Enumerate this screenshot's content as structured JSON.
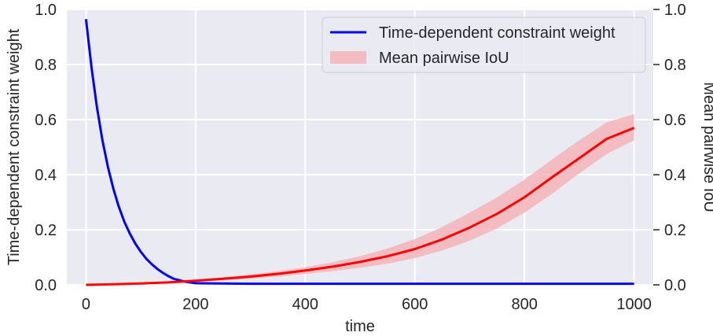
{
  "chart_data": {
    "type": "line",
    "title": "",
    "xlabel": "time",
    "ylabel_left": "Time-dependent constraint weight",
    "ylabel_right": "Mean pairwise IoU",
    "xlim": [
      -35,
      1035
    ],
    "ylim": [
      0,
      1
    ],
    "ylim_right": [
      0,
      1
    ],
    "x_ticks": [
      0,
      200,
      400,
      600,
      800,
      1000
    ],
    "x_tick_labels": [
      "0",
      "200",
      "400",
      "600",
      "800",
      "1000"
    ],
    "y_ticks": [
      0.0,
      0.2,
      0.4,
      0.6,
      0.8,
      1.0
    ],
    "y_tick_labels": [
      "0.0",
      "0.2",
      "0.4",
      "0.6",
      "0.8",
      "1.0"
    ],
    "y_right_tick_labels": [
      "0.0",
      "0.2",
      "0.4",
      "0.6",
      "0.8",
      "1.0"
    ],
    "grid": true,
    "legend_position": "top-right",
    "colors": {
      "background": "#EAEAF2",
      "grid": "#FFFFFF",
      "weight_line": "#0000FF",
      "iou_line": "#FF0000",
      "iou_band": "#F4B4B8"
    },
    "series": [
      {
        "name": "Time-dependent constraint weight",
        "axis": "left",
        "x": [
          0,
          10,
          20,
          30,
          40,
          50,
          60,
          70,
          80,
          90,
          100,
          110,
          120,
          130,
          140,
          150,
          160,
          180,
          200,
          300,
          400,
          500,
          600,
          700,
          800,
          900,
          1000
        ],
        "y": [
          0.965,
          0.79,
          0.645,
          0.525,
          0.428,
          0.348,
          0.283,
          0.229,
          0.186,
          0.15,
          0.12,
          0.095,
          0.075,
          0.058,
          0.044,
          0.032,
          0.022,
          0.012,
          0.006,
          0.004,
          0.004,
          0.004,
          0.004,
          0.004,
          0.004,
          0.004,
          0.004
        ]
      },
      {
        "name": "Mean pairwise IoU",
        "axis": "right",
        "x": [
          0,
          50,
          100,
          150,
          200,
          250,
          300,
          350,
          400,
          450,
          500,
          550,
          600,
          650,
          700,
          750,
          800,
          850,
          900,
          950,
          1000
        ],
        "y": [
          0.0,
          0.002,
          0.005,
          0.009,
          0.015,
          0.022,
          0.03,
          0.04,
          0.052,
          0.066,
          0.083,
          0.104,
          0.13,
          0.165,
          0.208,
          0.258,
          0.318,
          0.39,
          0.46,
          0.53,
          0.57
        ],
        "lower": [
          0.0,
          0.001,
          0.003,
          0.006,
          0.011,
          0.016,
          0.022,
          0.03,
          0.04,
          0.05,
          0.062,
          0.077,
          0.097,
          0.125,
          0.16,
          0.205,
          0.262,
          0.33,
          0.405,
          0.475,
          0.525
        ],
        "upper": [
          0.0,
          0.003,
          0.007,
          0.012,
          0.019,
          0.028,
          0.038,
          0.05,
          0.064,
          0.082,
          0.104,
          0.132,
          0.166,
          0.21,
          0.262,
          0.318,
          0.382,
          0.455,
          0.525,
          0.59,
          0.62
        ]
      }
    ]
  }
}
